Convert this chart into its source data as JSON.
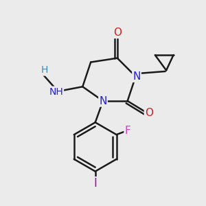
{
  "bg_color": "#ebebeb",
  "bond_color": "#1a1a1a",
  "bond_width": 1.8,
  "atom_colors": {
    "N": "#2222cc",
    "O": "#cc2222",
    "F": "#cc44bb",
    "I": "#aa00aa",
    "H_label": "#4488aa"
  }
}
